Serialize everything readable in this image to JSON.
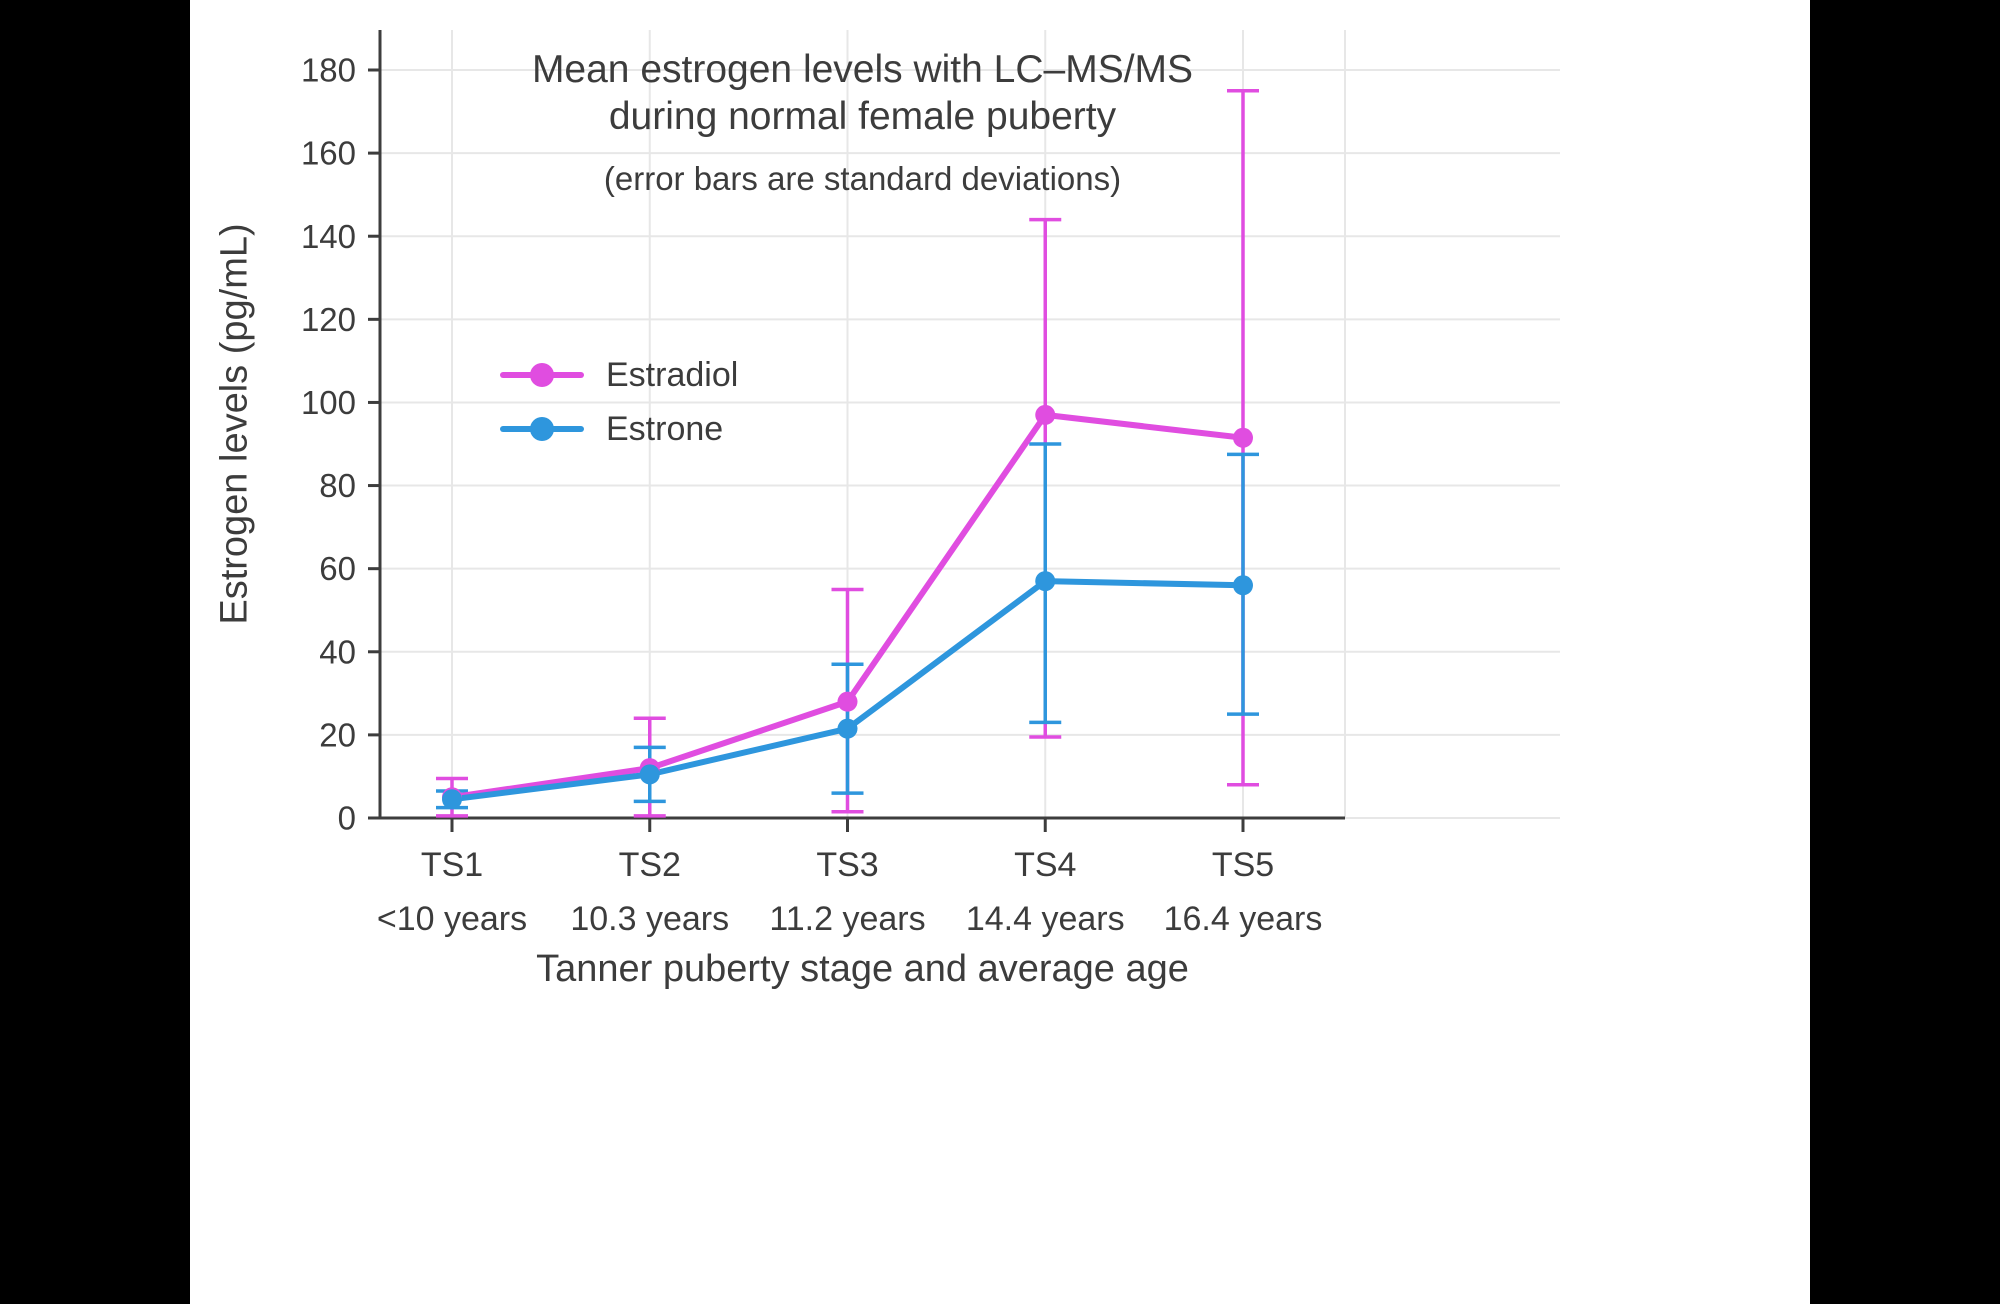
{
  "chart_data": {
    "type": "line",
    "title_line1": "Mean estrogen levels with LC–MS/MS",
    "title_line2": "during normal female puberty",
    "subtitle": "(error bars are standard deviations)",
    "xlabel": "Tanner puberty stage and average age",
    "ylabel": "Estrogen levels (pg/mL)",
    "categories": [
      "TS1",
      "TS2",
      "TS3",
      "TS4",
      "TS5"
    ],
    "category_sublabels": [
      "<10 years",
      "10.3 years",
      "11.2 years",
      "14.4 years",
      "16.4 years"
    ],
    "ylim": [
      0,
      186
    ],
    "yticks": [
      0,
      20,
      40,
      60,
      80,
      100,
      120,
      140,
      160,
      180
    ],
    "grid": true,
    "legend_position": "inside-upper-left",
    "error_bar_meaning": "standard deviations",
    "series": [
      {
        "name": "Estradiol",
        "color": "#e04de0",
        "values": [
          5,
          12,
          28,
          97,
          91.5
        ],
        "err_bottom": [
          0.5,
          0.5,
          1.5,
          19.5,
          8
        ],
        "err_top": [
          9.5,
          24,
          55,
          144,
          175
        ]
      },
      {
        "name": "Estrone",
        "color": "#2e96dd",
        "values": [
          4.5,
          10.5,
          21.5,
          57,
          56
        ],
        "err_bottom": [
          2.5,
          4,
          6,
          23,
          25
        ],
        "err_top": [
          6.5,
          17,
          37,
          90,
          87.5
        ]
      }
    ],
    "colors": {
      "grid": "#e7e7e7",
      "axis": "#3d3d3d",
      "text": "#3c3c3c"
    }
  }
}
